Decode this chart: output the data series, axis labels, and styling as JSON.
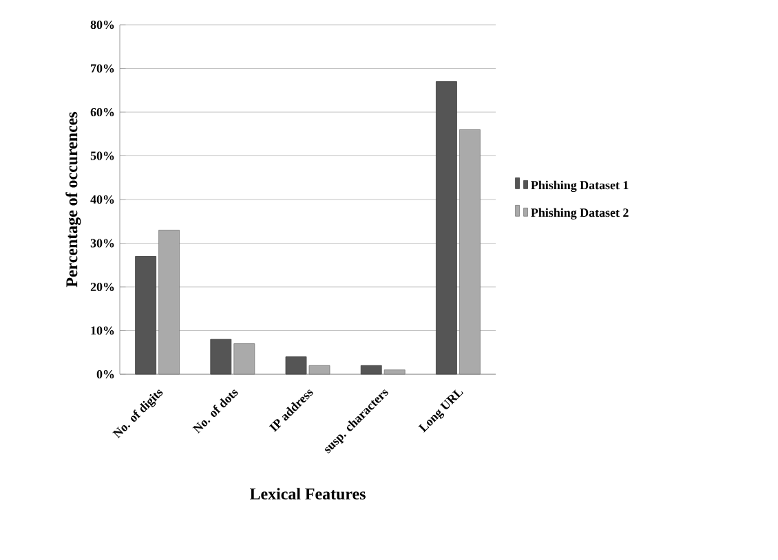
{
  "chart_data": {
    "type": "bar",
    "xlabel": "Lexical Features",
    "ylabel": "Percentage of occurences",
    "categories": [
      "No. of digits",
      "No. of dots",
      "IP address",
      "susp. characters",
      "Long URL"
    ],
    "series": [
      {
        "name": "Phishing Dataset 1",
        "color": "#555555",
        "values": [
          27,
          8,
          4,
          2,
          67
        ]
      },
      {
        "name": "Phishing Dataset 2",
        "color": "#aaaaaa",
        "values": [
          33,
          7,
          2,
          1,
          56
        ]
      }
    ],
    "ylim": [
      0,
      80
    ],
    "yticks": [
      {
        "value": 0,
        "label": "0%"
      },
      {
        "value": 10,
        "label": "10%"
      },
      {
        "value": 20,
        "label": "20%"
      },
      {
        "value": 30,
        "label": "30%"
      },
      {
        "value": 40,
        "label": "40%"
      },
      {
        "value": 50,
        "label": "50%"
      },
      {
        "value": 60,
        "label": "60%"
      },
      {
        "value": 70,
        "label": "70%"
      },
      {
        "value": 80,
        "label": "80%"
      }
    ],
    "grid": "y",
    "legend": "right"
  }
}
